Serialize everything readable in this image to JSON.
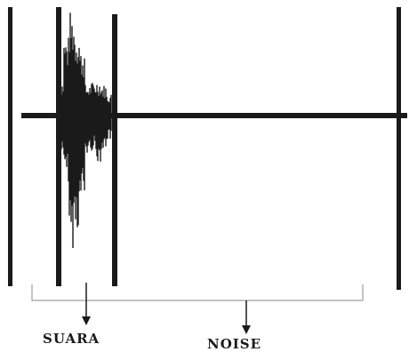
{
  "labels": {
    "speech": "SUARA",
    "noise": "NOISE"
  },
  "colors": {
    "ink": "#1a1a1a",
    "bracket": "#8a8a8a",
    "background": "#ffffff"
  }
}
